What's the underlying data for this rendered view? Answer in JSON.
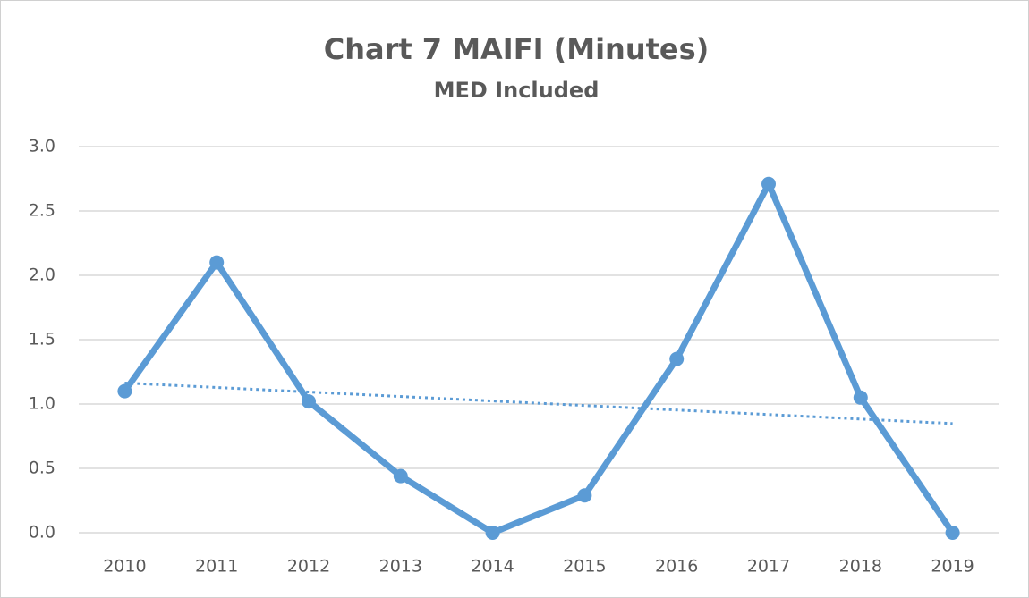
{
  "chart_data": {
    "type": "line",
    "title": "Chart 7 MAIFI (Minutes)",
    "subtitle": "MED Included",
    "categories": [
      "2010",
      "2011",
      "2012",
      "2013",
      "2014",
      "2015",
      "2016",
      "2017",
      "2018",
      "2019"
    ],
    "values": [
      1.1,
      2.1,
      1.02,
      0.44,
      0.0,
      0.29,
      1.35,
      2.71,
      1.05,
      0.0
    ],
    "color": "#5b9bd5",
    "trendline": "linear",
    "ylim": [
      0,
      3
    ],
    "yticks": [
      {
        "value": 0,
        "label": "0.0"
      },
      {
        "value": 0.5,
        "label": "0.5"
      },
      {
        "value": 1,
        "label": "1.0"
      },
      {
        "value": 1.5,
        "label": "1.5"
      },
      {
        "value": 2,
        "label": "2.0"
      },
      {
        "value": 2.5,
        "label": "2.5"
      },
      {
        "value": 3,
        "label": "3.0"
      }
    ],
    "grid": true
  }
}
